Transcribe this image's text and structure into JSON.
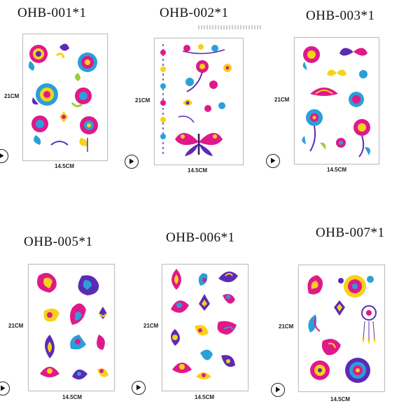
{
  "products": [
    {
      "code": "OHB-001*1",
      "height_label": "21CM",
      "width_label": "14.5CM",
      "theme": "rose"
    },
    {
      "code": "OHB-002*1",
      "height_label": "21CM",
      "width_label": "14.5CM",
      "theme": "butterfly"
    },
    {
      "code": "OHB-003*1",
      "height_label": "21CM",
      "width_label": "14.5CM",
      "theme": "rose-butterfly"
    },
    {
      "code": "OHB-005*1",
      "height_label": "21CM",
      "width_label": "14.5CM",
      "theme": "paisley"
    },
    {
      "code": "OHB-006*1",
      "height_label": "21CM",
      "width_label": "14.5CM",
      "theme": "paisley"
    },
    {
      "code": "OHB-007*1",
      "height_label": "21CM",
      "width_label": "14.5CM",
      "theme": "mandala"
    }
  ],
  "colors": {
    "magenta": "#e0198a",
    "yellow": "#f6d21a",
    "blue": "#2a9fd8",
    "purple": "#5b2bb5",
    "green": "#9ccf3a"
  },
  "icons": {
    "play": "play-circle-icon"
  }
}
